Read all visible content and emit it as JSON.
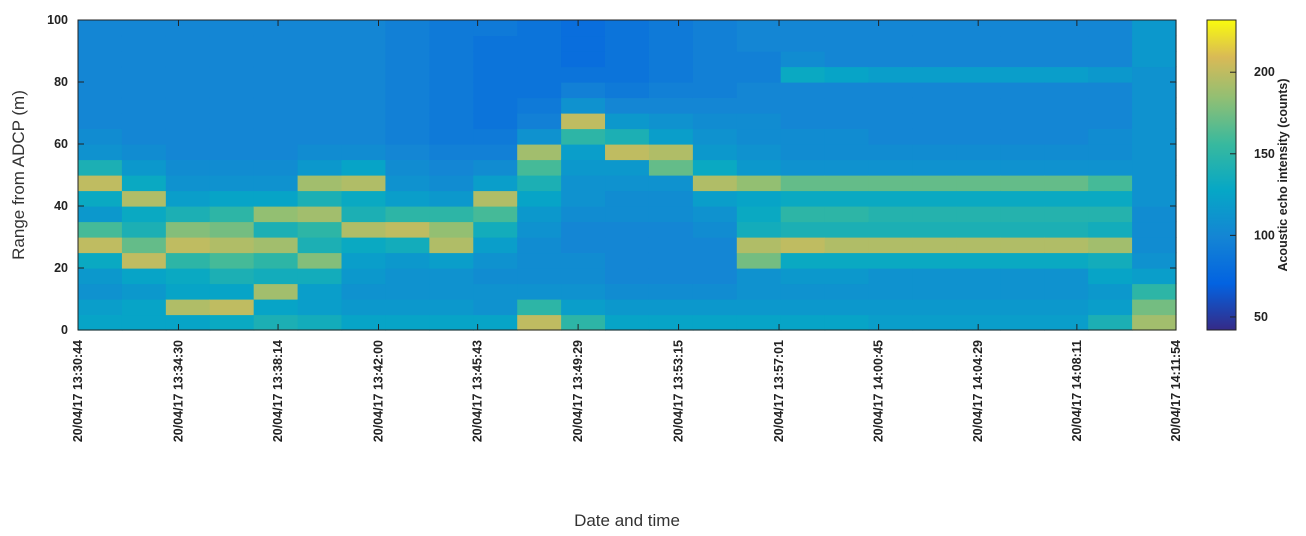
{
  "chart_data": {
    "type": "heatmap",
    "ylabel": "Range from ADCP (m)",
    "xlabel": "Date and time",
    "colorbar_label": "Acoustic echo intensity (counts)",
    "xlim": [
      "20/04/17 13:30:44",
      "20/04/17 14:11:54"
    ],
    "xticks": [
      "20/04/17 13:30:44",
      "20/04/17 13:34:30",
      "20/04/17 13:38:14",
      "20/04/17 13:42:00",
      "20/04/17 13:45:43",
      "20/04/17 13:49:29",
      "20/04/17 13:53:15",
      "20/04/17 13:57:01",
      "20/04/17 14:00:45",
      "20/04/17 14:04:29",
      "20/04/17 14:08:11",
      "20/04/17 14:11:54"
    ],
    "ylim": [
      0,
      100
    ],
    "yticks": [
      0,
      20,
      40,
      60,
      80,
      100
    ],
    "clim": [
      42,
      232
    ],
    "cticks": [
      50,
      100,
      150,
      200
    ],
    "colormap": "parula",
    "z": [
      [
        125,
        120,
        110,
        115,
        130,
        200,
        160,
        115,
        130,
        200,
        140,
        110,
        105,
        100,
        100,
        100,
        100,
        100,
        100,
        100
      ],
      [
        125,
        125,
        115,
        125,
        200,
        170,
        140,
        130,
        195,
        130,
        115,
        105,
        100,
        100,
        100,
        100,
        100,
        100,
        100,
        100
      ],
      [
        125,
        195,
        125,
        130,
        150,
        200,
        180,
        140,
        120,
        110,
        105,
        100,
        100,
        100,
        100,
        100,
        100,
        100,
        100,
        100
      ],
      [
        130,
        200,
        125,
        140,
        160,
        195,
        175,
        150,
        125,
        110,
        105,
        100,
        100,
        100,
        100,
        100,
        100,
        100,
        100,
        100
      ],
      [
        140,
        125,
        190,
        135,
        150,
        190,
        140,
        185,
        125,
        110,
        105,
        100,
        100,
        100,
        100,
        100,
        100,
        100,
        100,
        100
      ],
      [
        135,
        120,
        120,
        135,
        180,
        140,
        150,
        190,
        140,
        190,
        115,
        105,
        100,
        100,
        100,
        100,
        100,
        100,
        100,
        100
      ],
      [
        125,
        115,
        110,
        115,
        120,
        130,
        195,
        140,
        130,
        195,
        125,
        105,
        100,
        100,
        100,
        100,
        100,
        100,
        100,
        100
      ],
      [
        125,
        115,
        110,
        110,
        115,
        135,
        200,
        150,
        120,
        110,
        105,
        100,
        95,
        95,
        95,
        95,
        95,
        95,
        95,
        95
      ],
      [
        125,
        115,
        110,
        110,
        120,
        195,
        185,
        150,
        115,
        105,
        100,
        95,
        90,
        90,
        90,
        90,
        90,
        90,
        90,
        90
      ],
      [
        125,
        110,
        110,
        105,
        110,
        120,
        135,
        160,
        195,
        120,
        105,
        95,
        90,
        85,
        85,
        85,
        85,
        85,
        85,
        90
      ],
      [
        200,
        150,
        110,
        105,
        105,
        105,
        110,
        115,
        125,
        140,
        160,
        190,
        110,
        95,
        90,
        85,
        85,
        85,
        85,
        85
      ],
      [
        150,
        120,
        110,
        105,
        105,
        100,
        100,
        105,
        110,
        110,
        115,
        120,
        150,
        200,
        110,
        95,
        85,
        80,
        80,
        80
      ],
      [
        125,
        115,
        105,
        100,
        100,
        100,
        100,
        105,
        105,
        110,
        115,
        200,
        140,
        115,
        100,
        90,
        85,
        85,
        85,
        85
      ],
      [
        125,
        115,
        105,
        100,
        100,
        100,
        100,
        105,
        105,
        110,
        170,
        195,
        120,
        110,
        100,
        95,
        90,
        90,
        90,
        90
      ],
      [
        125,
        115,
        105,
        100,
        100,
        100,
        105,
        110,
        120,
        195,
        130,
        115,
        110,
        105,
        100,
        95,
        95,
        95,
        95,
        95
      ],
      [
        125,
        115,
        110,
        110,
        175,
        195,
        135,
        130,
        125,
        185,
        115,
        110,
        105,
        105,
        100,
        100,
        95,
        95,
        100,
        100
      ],
      [
        125,
        115,
        110,
        115,
        130,
        200,
        140,
        150,
        130,
        170,
        110,
        105,
        105,
        100,
        100,
        100,
        130,
        105,
        100,
        100
      ],
      [
        125,
        115,
        110,
        115,
        130,
        195,
        140,
        150,
        130,
        170,
        110,
        105,
        105,
        100,
        100,
        100,
        125,
        100,
        100,
        100
      ],
      [
        120,
        115,
        110,
        110,
        130,
        195,
        140,
        145,
        130,
        170,
        110,
        105,
        100,
        100,
        100,
        100,
        120,
        100,
        100,
        100
      ],
      [
        120,
        115,
        110,
        110,
        130,
        195,
        140,
        145,
        130,
        170,
        110,
        105,
        100,
        100,
        100,
        100,
        120,
        100,
        100,
        100
      ],
      [
        120,
        115,
        110,
        110,
        130,
        195,
        140,
        145,
        130,
        170,
        110,
        105,
        100,
        100,
        100,
        100,
        120,
        100,
        100,
        100
      ],
      [
        120,
        115,
        110,
        110,
        130,
        195,
        140,
        145,
        130,
        170,
        110,
        105,
        100,
        100,
        100,
        100,
        120,
        100,
        100,
        100
      ],
      [
        120,
        115,
        110,
        110,
        130,
        195,
        140,
        145,
        130,
        170,
        110,
        105,
        100,
        100,
        100,
        100,
        120,
        100,
        100,
        100
      ],
      [
        140,
        120,
        115,
        125,
        135,
        190,
        135,
        145,
        130,
        160,
        110,
        105,
        105,
        100,
        100,
        100,
        115,
        100,
        100,
        100
      ],
      [
        190,
        175,
        150,
        120,
        110,
        105,
        105,
        105,
        110,
        110,
        110,
        110,
        110,
        110,
        110,
        110,
        110,
        115,
        115,
        115
      ]
    ]
  }
}
